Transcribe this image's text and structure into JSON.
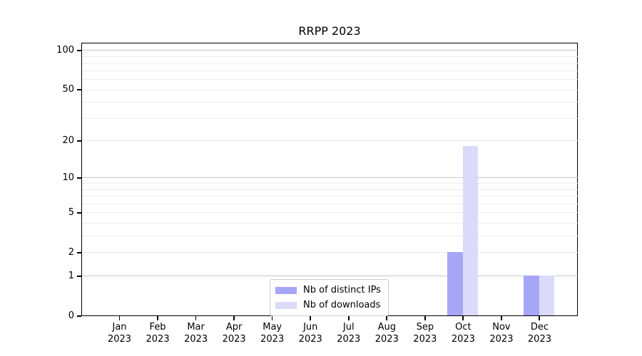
{
  "chart_data": {
    "type": "bar",
    "title": "RRPP 2023",
    "months": [
      "Jan",
      "Feb",
      "Mar",
      "Apr",
      "May",
      "Jun",
      "Jul",
      "Aug",
      "Sep",
      "Oct",
      "Nov",
      "Dec"
    ],
    "year_label": "2023",
    "series": [
      {
        "name": "Nb of distinct IPs",
        "color": "#a6a6f7",
        "values": [
          0,
          0,
          0,
          0,
          0,
          0,
          0,
          0,
          0,
          2,
          0,
          1
        ]
      },
      {
        "name": "Nb of downloads",
        "color": "#dbdbf9",
        "values": [
          0,
          0,
          0,
          0,
          0,
          0,
          0,
          0,
          0,
          18,
          0,
          1
        ]
      }
    ],
    "yscale": "log1p",
    "ylim": [
      0,
      115
    ],
    "yticks": [
      0,
      1,
      2,
      5,
      10,
      20,
      50,
      100
    ],
    "grid": {
      "major_values": [
        1,
        10,
        100
      ],
      "minor_values": [
        2,
        3,
        4,
        5,
        6,
        7,
        8,
        9,
        20,
        30,
        40,
        50,
        60,
        70,
        80,
        90
      ],
      "major_color": "#c8c8c8",
      "minor_color": "#ececec"
    },
    "legend_position": "bottom-center",
    "xlabel": "",
    "ylabel": ""
  }
}
